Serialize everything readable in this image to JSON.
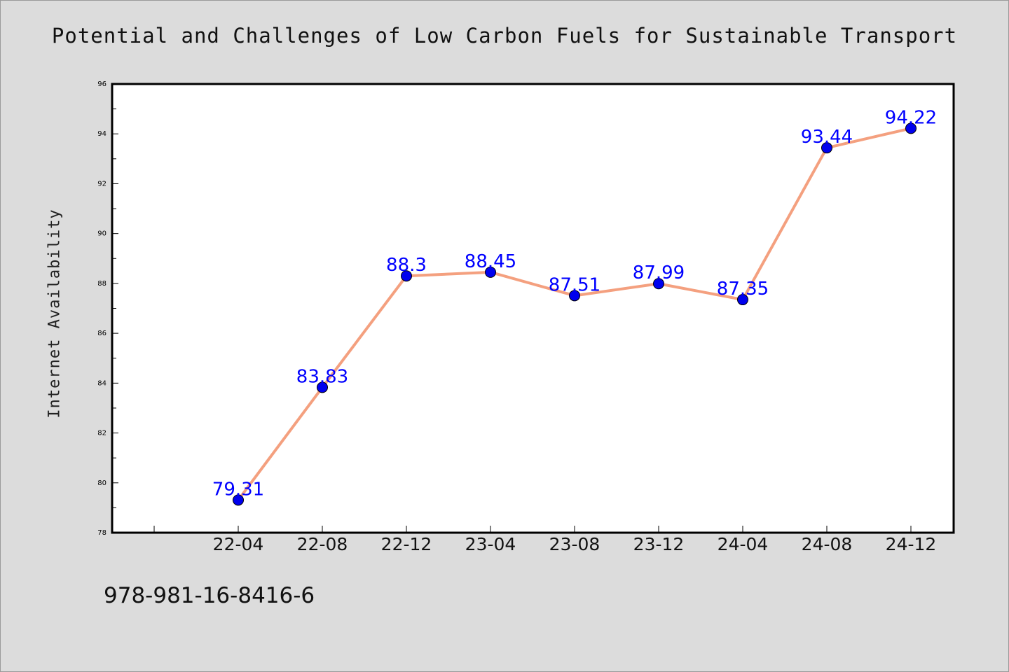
{
  "chart_data": {
    "type": "line",
    "title": "Potential and Challenges of Low Carbon Fuels for Sustainable Transport",
    "xlabel": "",
    "ylabel": "Internet Availability",
    "categories": [
      "22-04",
      "22-08",
      "22-12",
      "23-04",
      "23-08",
      "23-12",
      "24-04",
      "24-08",
      "24-12"
    ],
    "series": [
      {
        "values": [
          79.31,
          83.83,
          88.3,
          88.45,
          87.51,
          87.99,
          87.35,
          93.44,
          94.22
        ]
      }
    ],
    "data_labels": [
      "79.31",
      "83.83",
      "88.3",
      "88.45",
      "87.51",
      "87.99",
      "87.35",
      "93.44",
      "94.22"
    ],
    "ylim": [
      78,
      96
    ],
    "yticks": [
      78,
      80,
      82,
      84,
      86,
      88,
      90,
      92,
      94,
      96
    ],
    "grid": false,
    "legend": "none",
    "colors": {
      "line": "#f4a07f",
      "marker": "#0000ee",
      "label": "#0000ff",
      "background": "#dcdcdc",
      "plot": "#ffffff"
    }
  },
  "footer_text": "978-981-16-8416-6"
}
